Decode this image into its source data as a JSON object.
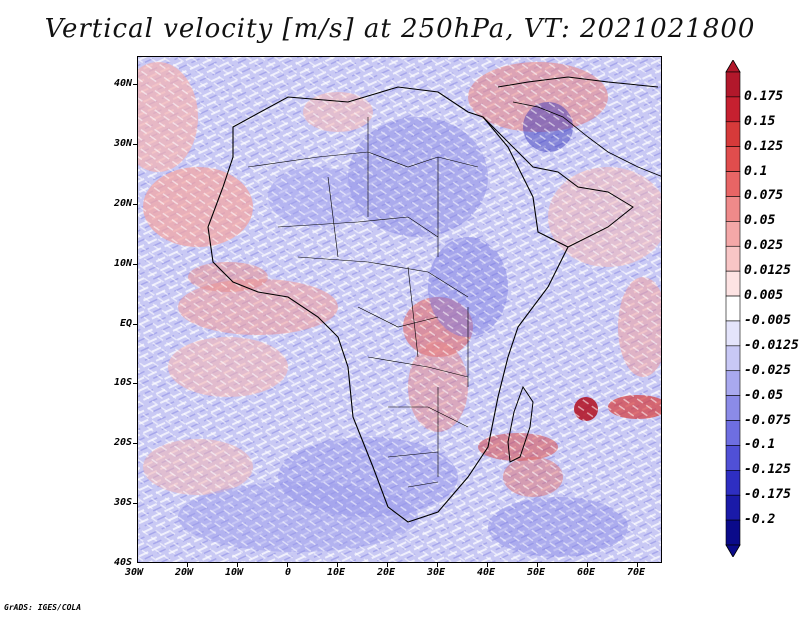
{
  "title": "Vertical velocity [m/s] at 250hPa, VT: 2021021800",
  "credit": "GrADS: IGES/COLA",
  "axes": {
    "lat_labels": [
      "40N",
      "30N",
      "20N",
      "10N",
      "EQ",
      "10S",
      "20S",
      "30S",
      "40S"
    ],
    "lon_labels": [
      "30W",
      "20W",
      "10W",
      "0",
      "10E",
      "20E",
      "30E",
      "40E",
      "50E",
      "60E",
      "70E"
    ]
  },
  "colorbar": {
    "labels": [
      "0.175",
      "0.15",
      "0.125",
      "0.1",
      "0.075",
      "0.05",
      "0.025",
      "0.0125",
      "0.005",
      "-0.005",
      "-0.0125",
      "-0.025",
      "-0.05",
      "-0.075",
      "-0.1",
      "-0.125",
      "-0.175",
      "-0.2"
    ],
    "colors": [
      "#b2182b",
      "#c62030",
      "#d63a3a",
      "#e04d4d",
      "#e86565",
      "#ef8a8a",
      "#f4a8a8",
      "#f8c6c6",
      "#fde3e3",
      "#ffffff",
      "#e4e4fb",
      "#c8c8f5",
      "#a9a9ef",
      "#8b8be8",
      "#6e6ee1",
      "#5050d6",
      "#2e2ec2",
      "#1a1aa8",
      "#0a0a8a"
    ]
  }
}
